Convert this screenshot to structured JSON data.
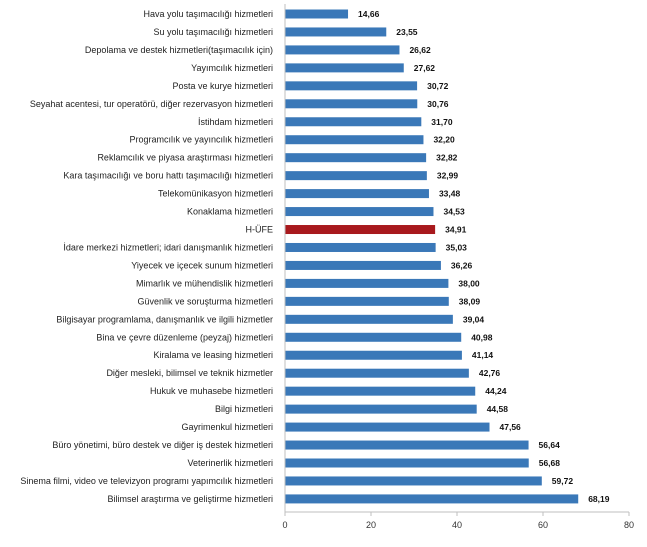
{
  "chart_data": {
    "type": "bar",
    "orientation": "horizontal",
    "categories": [
      "Hava yolu taşımacılığı hizmetleri",
      "Su yolu taşımacılığı hizmetleri",
      "Depolama ve destek hizmetleri(taşımacılık için)",
      "Yayımcılık hizmetleri",
      "Posta ve kurye hizmetleri",
      "Seyahat acentesi, tur operatörü, diğer rezervasyon hizmetleri",
      "İstihdam hizmetleri",
      "Programcılık ve yayıncılık hizmetleri",
      "Reklamcılık ve piyasa araştırması hizmetleri",
      "Kara taşımacılığı ve boru hattı taşımacılığı hizmetleri",
      "Telekomünikasyon hizmetleri",
      "Konaklama hizmetleri",
      "H-ÜFE",
      "İdare merkezi hizmetleri; idari danışmanlık hizmetleri",
      "Yiyecek ve içecek sunum hizmetleri",
      "Mimarlık ve mühendislik hizmetleri",
      "Güvenlik ve soruşturma hizmetleri",
      "Bilgisayar programlama, danışmanlık ve ilgili hizmetler",
      "Bina ve çevre düzenleme (peyzaj) hizmetleri",
      "Kiralama ve leasing hizmetleri",
      "Diğer mesleki, bilimsel ve teknik hizmetler",
      "Hukuk ve muhasebe hizmetleri",
      "Bilgi hizmetleri",
      "Gayrimenkul hizmetleri",
      "Büro yönetimi, büro destek ve diğer iş destek hizmetleri",
      "Veterinerlik hizmetleri",
      "Sinema filmi, video ve televizyon programı yapımcılık hizmetleri",
      "Bilimsel araştırma ve geliştirme hizmetleri"
    ],
    "values": [
      14.66,
      23.55,
      26.62,
      27.62,
      30.72,
      30.76,
      31.7,
      32.2,
      32.82,
      32.99,
      33.48,
      34.53,
      34.91,
      35.03,
      36.26,
      38.0,
      38.09,
      39.04,
      40.98,
      41.14,
      42.76,
      44.24,
      44.58,
      47.56,
      56.64,
      56.68,
      59.72,
      68.19
    ],
    "value_labels": [
      "14,66",
      "23,55",
      "26,62",
      "27,62",
      "30,72",
      "30,76",
      "31,70",
      "32,20",
      "32,82",
      "32,99",
      "33,48",
      "34,53",
      "34,91",
      "35,03",
      "36,26",
      "38,00",
      "38,09",
      "39,04",
      "40,98",
      "41,14",
      "42,76",
      "44,24",
      "44,58",
      "47,56",
      "56,64",
      "56,68",
      "59,72",
      "68,19"
    ],
    "highlight_category": "H-ÜFE",
    "xlim": [
      0,
      80
    ],
    "xticks": [
      0,
      20,
      40,
      60,
      80
    ],
    "xtick_labels": [
      "0",
      "20",
      "40",
      "60",
      "80"
    ],
    "grid": false,
    "legend": "none",
    "colors": {
      "bar": "#3a78b8",
      "highlight": "#a8191d",
      "axis": "#bfbfbf"
    }
  }
}
